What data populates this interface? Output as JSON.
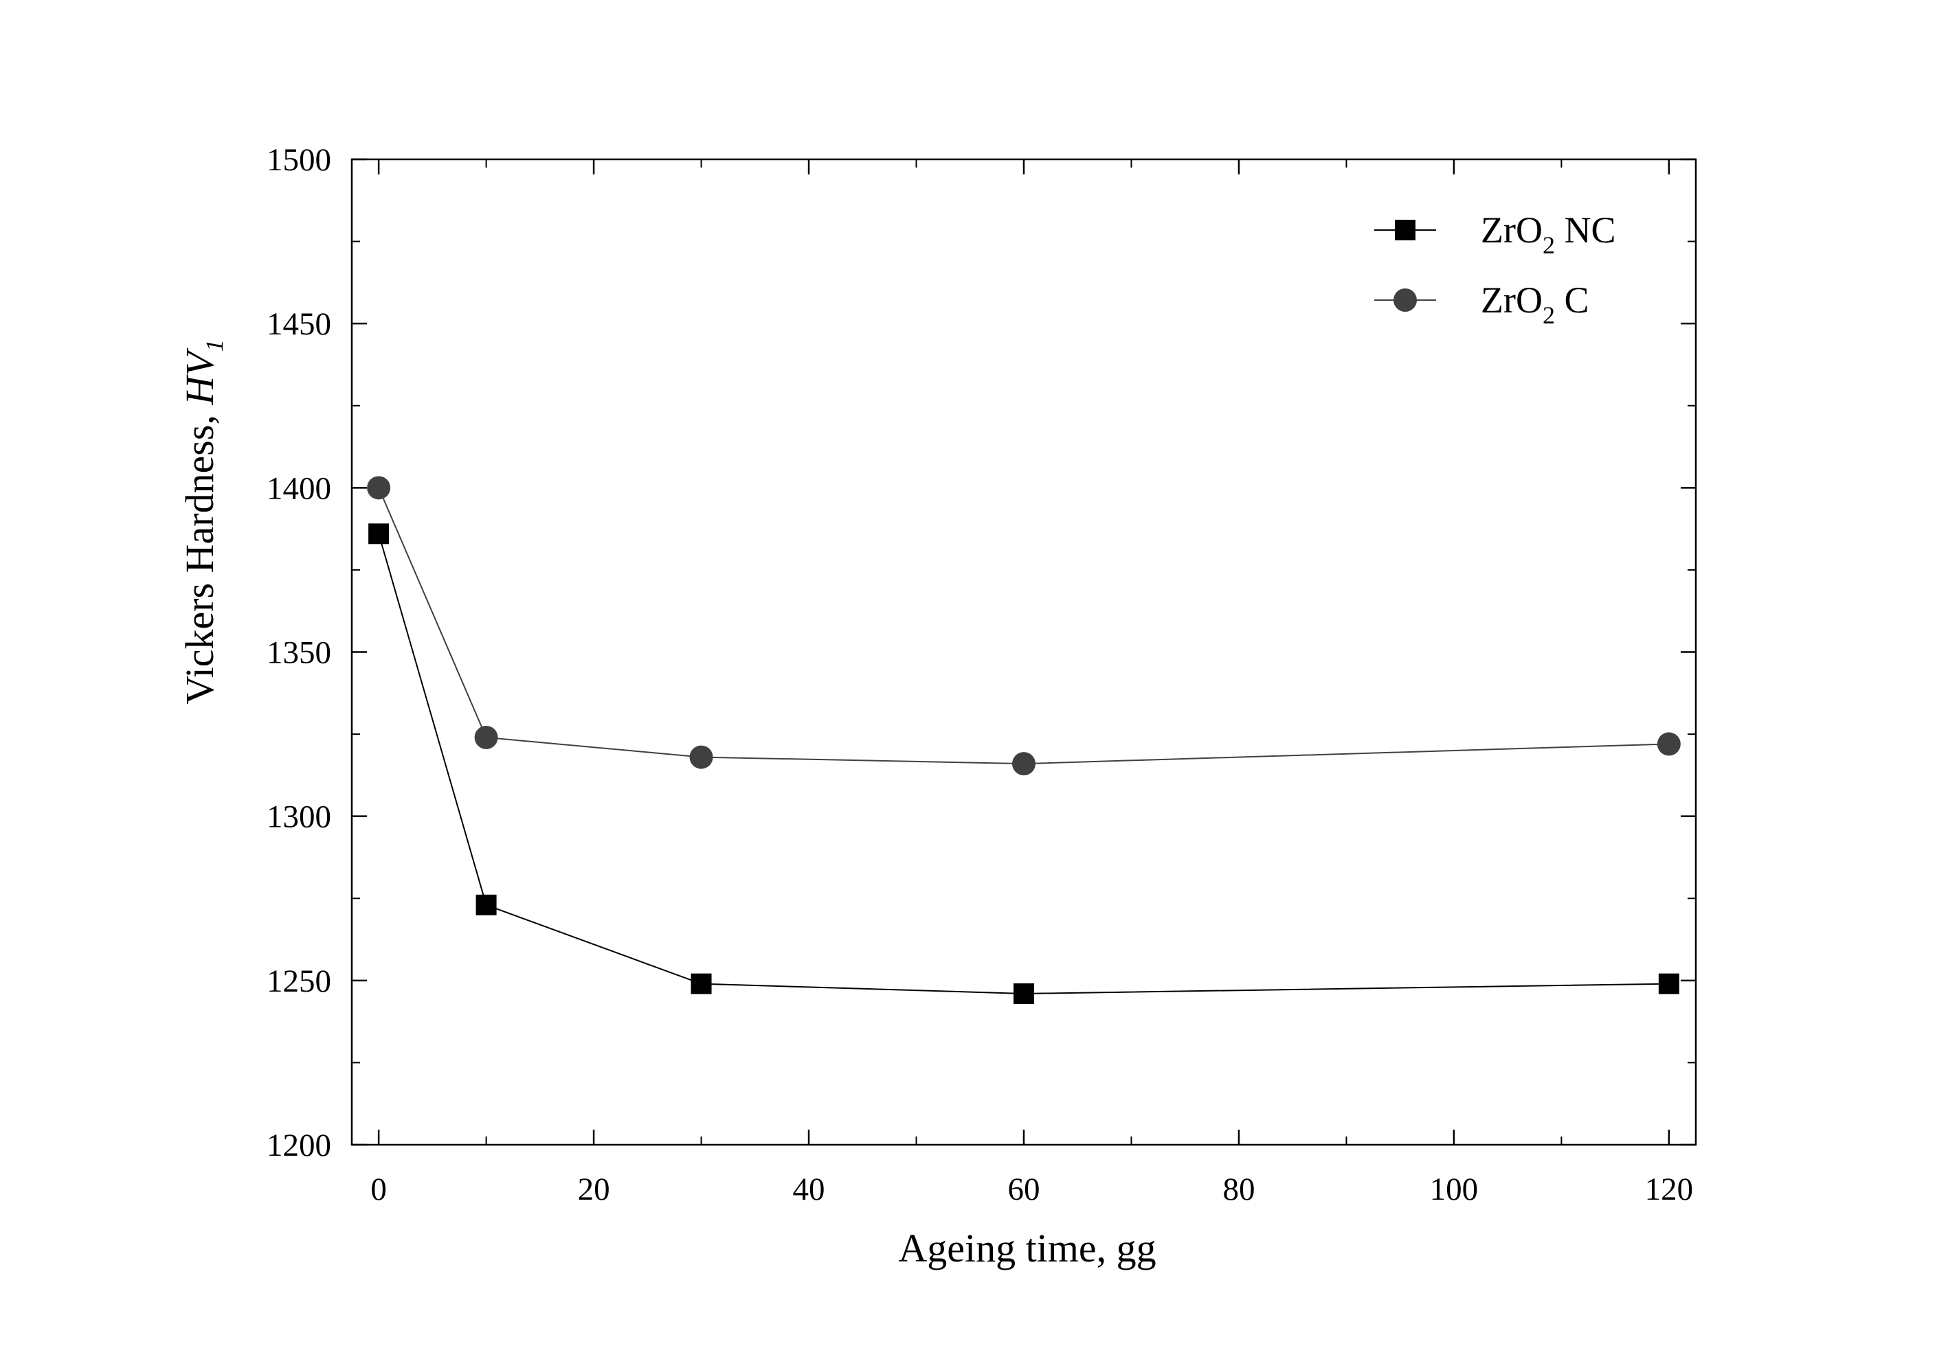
{
  "chart_data": {
    "type": "line",
    "title": "",
    "xlabel": "Ageing time, gg",
    "ylabel": "Vickers Hardness, HV1",
    "ylabel_main": "Vickers Hardness, ",
    "ylabel_italic": "HV",
    "ylabel_sub": "1",
    "xlim": [
      -2.5,
      122.5
    ],
    "ylim": [
      1200,
      1500
    ],
    "xticks": [
      0,
      20,
      40,
      60,
      80,
      100,
      120
    ],
    "xtick_labels": [
      "0",
      "20",
      "40",
      "60",
      "80",
      "100",
      "120"
    ],
    "yticks": [
      1200,
      1250,
      1300,
      1350,
      1400,
      1450,
      1500
    ],
    "ytick_labels": [
      "1200",
      "1250",
      "1300",
      "1350",
      "1400",
      "1450",
      "1500"
    ],
    "grid": false,
    "legend_position": "top-right",
    "x": [
      0,
      10,
      30,
      60,
      120
    ],
    "series": [
      {
        "name": "ZrO2 NC",
        "name_main": "ZrO",
        "name_sub": "2",
        "name_suffix": " NC",
        "marker": "square",
        "color": "#000000",
        "values": [
          1386,
          1273,
          1249,
          1246,
          1249
        ]
      },
      {
        "name": "ZrO2 C",
        "name_main": "ZrO",
        "name_sub": "2",
        "name_suffix": " C",
        "marker": "circle",
        "color": "#404040",
        "values": [
          1400,
          1324,
          1318,
          1316,
          1322
        ]
      }
    ]
  }
}
